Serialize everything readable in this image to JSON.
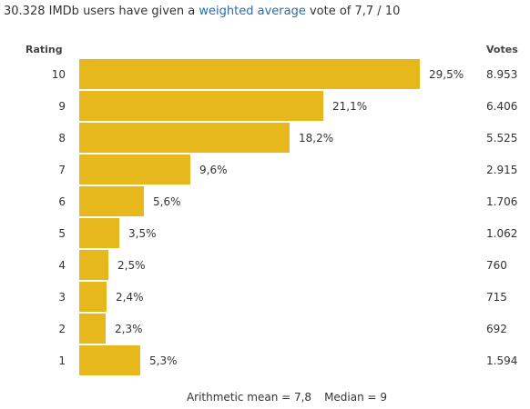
{
  "summary": {
    "prefix": "30.328 IMDb users have given a ",
    "link": "weighted average",
    "suffix": " vote of 7,7 / 10"
  },
  "footer": {
    "mean": "Arithmetic mean = 7,8",
    "median": "Median = 9"
  },
  "chart_data": {
    "type": "bar",
    "orientation": "horizontal",
    "row_header": "Rating",
    "votes_header": "Votes",
    "bar_color": "#e6b81c",
    "rows": [
      {
        "rating": "10",
        "pct_value": 29.5,
        "pct": "29,5%",
        "votes": "8.953"
      },
      {
        "rating": "9",
        "pct_value": 21.1,
        "pct": "21,1%",
        "votes": "6.406"
      },
      {
        "rating": "8",
        "pct_value": 18.2,
        "pct": "18,2%",
        "votes": "5.525"
      },
      {
        "rating": "7",
        "pct_value": 9.6,
        "pct": "9,6%",
        "votes": "2.915"
      },
      {
        "rating": "6",
        "pct_value": 5.6,
        "pct": "5,6%",
        "votes": "1.706"
      },
      {
        "rating": "5",
        "pct_value": 3.5,
        "pct": "3,5%",
        "votes": "1.062"
      },
      {
        "rating": "4",
        "pct_value": 2.5,
        "pct": "2,5%",
        "votes": "760"
      },
      {
        "rating": "3",
        "pct_value": 2.4,
        "pct": "2,4%",
        "votes": "715"
      },
      {
        "rating": "2",
        "pct_value": 2.3,
        "pct": "2,3%",
        "votes": "692"
      },
      {
        "rating": "1",
        "pct_value": 5.3,
        "pct": "5,3%",
        "votes": "1.594"
      }
    ]
  }
}
